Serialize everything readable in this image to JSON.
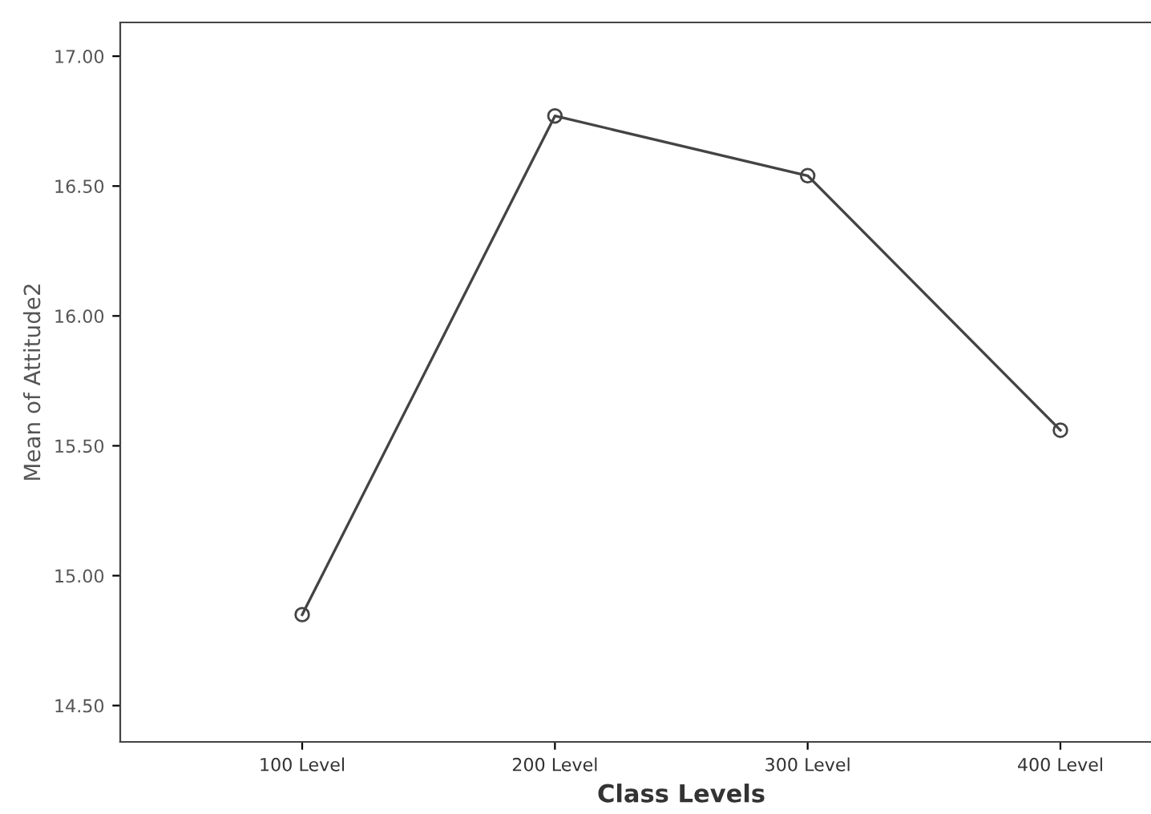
{
  "chart_data": {
    "type": "line",
    "xlabel": "Class Levels",
    "ylabel": "Mean of Attitude2",
    "categories": [
      "100 Level",
      "200 Level",
      "300 Level",
      "400 Level"
    ],
    "series": [
      {
        "color": "#444444",
        "values": [
          14.85,
          16.77,
          16.54,
          15.56
        ]
      }
    ],
    "ylim": [
      14.36,
      17.13
    ],
    "yticks": [
      {
        "value": 14.5,
        "label": "14.50"
      },
      {
        "value": 15.0,
        "label": "15.00"
      },
      {
        "value": 15.5,
        "label": "15.50"
      },
      {
        "value": 16.0,
        "label": "16.00"
      },
      {
        "value": 16.5,
        "label": "16.50"
      },
      {
        "value": 17.0,
        "label": "17.00"
      }
    ],
    "marker": "circle",
    "line_style": "solid",
    "grid": false,
    "legend": false
  }
}
